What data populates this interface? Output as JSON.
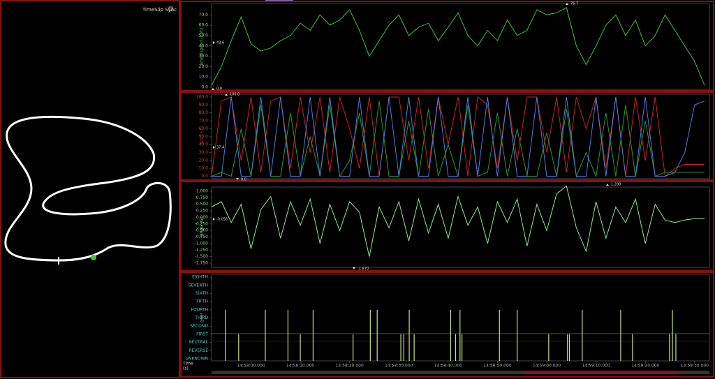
{
  "header": {
    "sync": "TimeSlip Sync"
  },
  "chart_data": [
    {
      "type": "line",
      "ylabel": "wheelspeed (kph)",
      "ylim": [
        -2,
        81
      ],
      "yticks": [
        {
          "value": 0,
          "label": "0.0"
        },
        {
          "value": 10,
          "label": "10.0"
        },
        {
          "value": 20,
          "label": "20.0"
        },
        {
          "value": 30,
          "label": "30.0"
        },
        {
          "value": 40,
          "label": "40.0"
        },
        {
          "value": 50,
          "label": "50.0"
        },
        {
          "value": 60,
          "label": "60.0"
        },
        {
          "value": 70,
          "label": "70.0"
        }
      ],
      "xlim": [
        53872,
        53973
      ],
      "x": [
        53872,
        53874,
        53876,
        53878,
        53880,
        53882,
        53884,
        53886,
        53888,
        53890,
        53892,
        53894,
        53896,
        53898,
        53900,
        53902,
        53904,
        53906,
        53908,
        53910,
        53912,
        53914,
        53916,
        53918,
        53920,
        53922,
        53924,
        53926,
        53928,
        53930,
        53932,
        53934,
        53936,
        53938,
        53940,
        53942,
        53944,
        53946,
        53948,
        53950,
        53952,
        53954,
        53956,
        53958,
        53960,
        53962,
        53964,
        53966,
        53968,
        53970,
        53972
      ],
      "series": [
        {
          "color": "#3fbf3f",
          "values": [
            2,
            20,
            45,
            68,
            42,
            35,
            38,
            45,
            50,
            62,
            55,
            70,
            60,
            65,
            75,
            55,
            30,
            45,
            60,
            70,
            50,
            58,
            62,
            45,
            58,
            72,
            50,
            40,
            55,
            45,
            65,
            50,
            55,
            75,
            70,
            72,
            77,
            40,
            22,
            40,
            60,
            70,
            50,
            65,
            40,
            50,
            70,
            55,
            40,
            25,
            2
          ]
        }
      ],
      "annotations": [
        "43.6",
        "0.0",
        "76.7"
      ]
    },
    {
      "type": "line",
      "ylabel": "tps (%)",
      "ylim": [
        -3,
        103.5
      ],
      "yticks": [
        {
          "value": 0,
          "label": "0.0"
        },
        {
          "value": 10,
          "label": "10.0"
        },
        {
          "value": 20,
          "label": "20.0"
        },
        {
          "value": 30,
          "label": "30.0"
        },
        {
          "value": 40,
          "label": "40.0"
        },
        {
          "value": 50,
          "label": "50.0"
        },
        {
          "value": 60,
          "label": "60.0"
        },
        {
          "value": 70,
          "label": "70.0"
        },
        {
          "value": 80,
          "label": "80.0"
        },
        {
          "value": 90,
          "label": "90.0"
        },
        {
          "value": 100,
          "label": "100.0"
        }
      ],
      "xlim": [
        53872,
        53973
      ],
      "x": [
        53872,
        53874,
        53876,
        53878,
        53880,
        53882,
        53884,
        53886,
        53888,
        53890,
        53892,
        53894,
        53896,
        53898,
        53900,
        53902,
        53904,
        53906,
        53908,
        53910,
        53912,
        53914,
        53916,
        53918,
        53920,
        53922,
        53924,
        53926,
        53928,
        53930,
        53932,
        53934,
        53936,
        53938,
        53940,
        53942,
        53944,
        53946,
        53948,
        53950,
        53952,
        53954,
        53956,
        53958,
        53960,
        53962,
        53964,
        53966,
        53968,
        53970,
        53972
      ],
      "series": [
        {
          "color": "#d02020",
          "values": [
            0,
            95,
            100,
            20,
            100,
            5,
            95,
            100,
            10,
            100,
            30,
            100,
            5,
            100,
            60,
            10,
            100,
            0,
            100,
            100,
            20,
            100,
            10,
            100,
            40,
            100,
            0,
            100,
            90,
            10,
            100,
            20,
            100,
            100,
            30,
            100,
            5,
            100,
            60,
            100,
            10,
            100,
            0,
            100,
            20,
            100,
            0,
            10,
            15,
            15,
            15
          ]
        },
        {
          "color": "#2a9a2a",
          "values": [
            0,
            5,
            0,
            60,
            0,
            90,
            0,
            0,
            80,
            0,
            50,
            0,
            90,
            0,
            20,
            80,
            0,
            95,
            0,
            0,
            70,
            0,
            85,
            0,
            40,
            0,
            90,
            0,
            5,
            80,
            0,
            60,
            0,
            0,
            55,
            0,
            85,
            0,
            30,
            0,
            80,
            0,
            90,
            0,
            70,
            0,
            5,
            5,
            5,
            5,
            5
          ]
        },
        {
          "color": "#4a7fe0",
          "values": [
            0,
            0,
            100,
            0,
            0,
            100,
            0,
            100,
            0,
            0,
            100,
            0,
            100,
            0,
            0,
            100,
            0,
            0,
            100,
            0,
            100,
            0,
            0,
            100,
            0,
            0,
            100,
            0,
            100,
            0,
            100,
            0,
            0,
            100,
            0,
            0,
            100,
            0,
            0,
            100,
            0,
            100,
            0,
            0,
            100,
            0,
            0,
            5,
            30,
            90,
            95
          ]
        }
      ],
      "annotations": [
        "100.0",
        "37.4",
        "0.0"
      ]
    },
    {
      "type": "line",
      "ylabel": "longG (G)",
      "ylim": [
        -1.91,
        1.16
      ],
      "yticks": [
        {
          "value": 1,
          "label": "1.000"
        },
        {
          "value": 0.75,
          "label": "0.750"
        },
        {
          "value": 0.5,
          "label": "0.500"
        },
        {
          "value": 0.25,
          "label": "0.250"
        },
        {
          "value": 0,
          "label": "0.000"
        },
        {
          "value": -0.25,
          "label": "-0.250"
        },
        {
          "value": -0.5,
          "label": "-0.500"
        },
        {
          "value": -0.75,
          "label": "-0.750"
        },
        {
          "value": -1,
          "label": "-1.000"
        },
        {
          "value": -1.25,
          "label": "-1.250"
        },
        {
          "value": -1.5,
          "label": "-1.500"
        },
        {
          "value": -1.75,
          "label": "-1.750"
        }
      ],
      "xlim": [
        53872,
        53973
      ],
      "x": [
        53872,
        53874,
        53876,
        53878,
        53880,
        53882,
        53884,
        53886,
        53888,
        53890,
        53892,
        53894,
        53896,
        53898,
        53900,
        53902,
        53904,
        53906,
        53908,
        53910,
        53912,
        53914,
        53916,
        53918,
        53920,
        53922,
        53924,
        53926,
        53928,
        53930,
        53932,
        53934,
        53936,
        53938,
        53940,
        53942,
        53944,
        53946,
        53948,
        53950,
        53952,
        53954,
        53956,
        53958,
        53960,
        53962,
        53964,
        53966,
        53968,
        53970,
        53972
      ],
      "series": [
        {
          "color": "#8fe88f",
          "values": [
            0.4,
            0.6,
            -0.2,
            0.5,
            -1.2,
            0.3,
            0.8,
            -0.8,
            0.6,
            -0.3,
            0.7,
            -1.0,
            0.5,
            -0.5,
            0.6,
            0.2,
            -1.5,
            0.4,
            -0.4,
            0.6,
            -0.9,
            0.7,
            -0.6,
            0.5,
            -0.8,
            0.8,
            -0.3,
            0.4,
            -1.0,
            0.6,
            -0.2,
            0.7,
            -1.1,
            0.5,
            -0.5,
            0.9,
            1.2,
            -0.4,
            -1.3,
            0.6,
            -0.8,
            0.4,
            -0.2,
            0.7,
            -1.0,
            0.5,
            -0.1,
            -0.2,
            -0.1,
            -0.05,
            -0.05
          ]
        }
      ],
      "annotations": [
        "1.288",
        "-0.056",
        "-1.870"
      ]
    },
    {
      "type": "bar",
      "ylabel": "gear",
      "ylim": [
        -0.25,
        10.35
      ],
      "yticks": [
        {
          "value": 0,
          "label": "UNKNOWN"
        },
        {
          "value": 1,
          "label": "REVERSE"
        },
        {
          "value": 2,
          "label": "NEUTRAL"
        },
        {
          "value": 3,
          "label": "FIRST"
        },
        {
          "value": 4,
          "label": "SECOND"
        },
        {
          "value": 5,
          "label": "THIRD"
        },
        {
          "value": 6,
          "label": "FOURTH"
        },
        {
          "value": 7,
          "label": "FIFTH"
        },
        {
          "value": 8,
          "label": "SIXTH"
        },
        {
          "value": 9,
          "label": "SEVENTH"
        },
        {
          "value": 10,
          "label": "EIGHTH"
        }
      ],
      "xlim": [
        53872,
        53973
      ],
      "xticks": [
        {
          "value": 53880,
          "label": "14:58:00.000"
        },
        {
          "value": 53890,
          "label": "14:58:10.000"
        },
        {
          "value": 53900,
          "label": "14:58:20.000"
        },
        {
          "value": 53910,
          "label": "14:58:30.000"
        },
        {
          "value": 53920,
          "label": "14:58:40.000"
        },
        {
          "value": 53930,
          "label": "14:58:50.000"
        },
        {
          "value": 53940,
          "label": "14:59:00.000"
        },
        {
          "value": 53950,
          "label": "14:59:10.000"
        },
        {
          "value": 53960,
          "label": "14:59:20.000"
        },
        {
          "value": 53970,
          "label": "14:59:30.000"
        }
      ],
      "xlabel": "Time",
      "xunit": "(s)",
      "x": [
        53874.8,
        53877.5,
        53882.9,
        53887.5,
        53890.0,
        53892.6,
        53900.7,
        53904.2,
        53905.6,
        53910.4,
        53911.0,
        53912.1,
        53913.1,
        53920.5,
        53921.5,
        53922.4,
        53922.8,
        53930.4,
        53934.0,
        53940.4,
        53944.2,
        53944.6,
        53947.2,
        53955.0,
        53957.4,
        53964.9,
        53965.5,
        53966.2
      ],
      "series": [
        {
          "color": "#c8e07a",
          "values": [
            6,
            3,
            6,
            6,
            3,
            6,
            3,
            6,
            6,
            3,
            3,
            6,
            3,
            6,
            3,
            6,
            3,
            6,
            6,
            3,
            3,
            3,
            6,
            6,
            3,
            3,
            6,
            3
          ]
        }
      ]
    }
  ]
}
